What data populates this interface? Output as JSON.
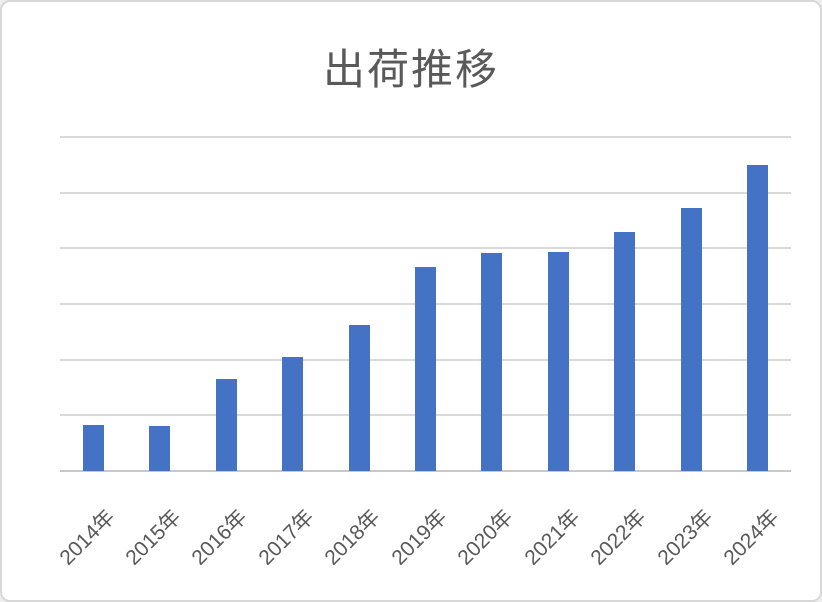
{
  "title": "出荷推移",
  "colors": {
    "bar": "#4472C4",
    "gridline": "#D9D9D9",
    "axis_line": "#C9C7C7",
    "text": "#595959",
    "frame_border": "#D8D8D8",
    "background": "#FFFFFF"
  },
  "chart_data": {
    "type": "bar",
    "title": "出荷推移",
    "categories": [
      "2014年",
      "2015年",
      "2016年",
      "2017年",
      "2018年",
      "2019年",
      "2020年",
      "2021年",
      "2022年",
      "2023年",
      "2024年"
    ],
    "values": [
      83,
      80,
      166,
      205,
      262,
      366,
      392,
      394,
      430,
      473,
      550
    ],
    "xlabel": "",
    "ylabel": "",
    "ylim": [
      0,
      600
    ],
    "gridline_interval": 100,
    "grid": true,
    "legend": false,
    "y_tick_labels_visible": false,
    "x_label_rotation_deg": 45
  }
}
